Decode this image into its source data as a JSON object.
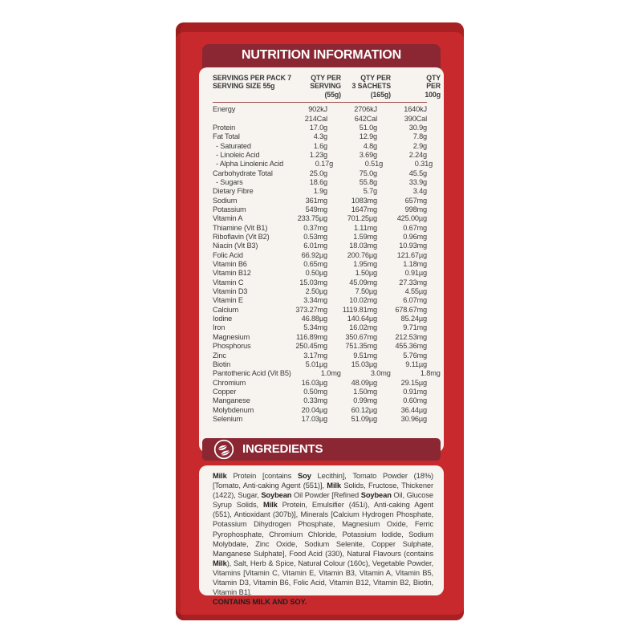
{
  "colors": {
    "box_red": "#c8292c",
    "box_edge_dark": "#9e2023",
    "band_maroon": "#8a2733",
    "panel_bg": "#f7f4f0",
    "text_dark": "#3a3a3a"
  },
  "nutrition": {
    "title": "NUTRITION INFORMATION",
    "servings_per_pack": "SERVINGS PER PACK 7",
    "serving_size": "SERVING SIZE 55g",
    "columns": [
      [
        "QTY PER",
        "SERVING",
        "(55g)"
      ],
      [
        "QTY PER",
        "3 SACHETS",
        "(165g)"
      ],
      [
        "QTY",
        "PER",
        "100g"
      ]
    ],
    "rows": [
      {
        "label": "Energy",
        "v": [
          [
            "902kJ",
            "214Cal"
          ],
          [
            "2706kJ",
            "642Cal"
          ],
          [
            "1640kJ",
            "390Cal"
          ]
        ]
      },
      {
        "label": "Protein",
        "v": [
          "17.0g",
          "51.0g",
          "30.9g"
        ]
      },
      {
        "label": "Fat Total",
        "v": [
          "4.3g",
          "12.9g",
          "7.8g"
        ]
      },
      {
        "label": "- Saturated",
        "sub": true,
        "v": [
          "1.6g",
          "4.8g",
          "2.9g"
        ]
      },
      {
        "label": "- Linoleic Acid",
        "sub": true,
        "v": [
          "1.23g",
          "3.69g",
          "2.24g"
        ]
      },
      {
        "label": "- Alpha Linolenic Acid",
        "sub": true,
        "v": [
          "0.17g",
          "0.51g",
          "0.31g"
        ]
      },
      {
        "label": "Carbohydrate Total",
        "v": [
          "25.0g",
          "75.0g",
          "45.5g"
        ]
      },
      {
        "label": "- Sugars",
        "sub": true,
        "v": [
          "18.6g",
          "55.8g",
          "33.9g"
        ]
      },
      {
        "label": "Dietary Fibre",
        "v": [
          "1.9g",
          "5.7g",
          "3.4g"
        ]
      },
      {
        "label": "Sodium",
        "v": [
          "361mg",
          "1083mg",
          "657mg"
        ]
      },
      {
        "label": "Potassium",
        "v": [
          "549mg",
          "1647mg",
          "998mg"
        ]
      },
      {
        "label": "Vitamin A",
        "v": [
          "233.75µg",
          "701.25µg",
          "425.00µg"
        ]
      },
      {
        "label": "Thiamine (Vit B1)",
        "v": [
          "0.37mg",
          "1.11mg",
          "0.67mg"
        ]
      },
      {
        "label": "Riboflavin (Vit B2)",
        "v": [
          "0.53mg",
          "1.59mg",
          "0.96mg"
        ]
      },
      {
        "label": "Niacin (Vit B3)",
        "v": [
          "6.01mg",
          "18.03mg",
          "10.93mg"
        ]
      },
      {
        "label": "Folic Acid",
        "v": [
          "66.92µg",
          "200.76µg",
          "121.67µg"
        ]
      },
      {
        "label": "Vitamin B6",
        "v": [
          "0.65mg",
          "1.95mg",
          "1.18mg"
        ]
      },
      {
        "label": "Vitamin B12",
        "v": [
          "0.50µg",
          "1.50µg",
          "0.91µg"
        ]
      },
      {
        "label": "Vitamin C",
        "v": [
          "15.03mg",
          "45.09mg",
          "27.33mg"
        ]
      },
      {
        "label": "Vitamin D3",
        "v": [
          "2.50µg",
          "7.50µg",
          "4.55µg"
        ]
      },
      {
        "label": "Vitamin E",
        "v": [
          "3.34mg",
          "10.02mg",
          "6.07mg"
        ]
      },
      {
        "label": "Calcium",
        "v": [
          "373.27mg",
          "1119.81mg",
          "678.67mg"
        ]
      },
      {
        "label": "Iodine",
        "v": [
          "46.88µg",
          "140.64µg",
          "85.24µg"
        ]
      },
      {
        "label": "Iron",
        "v": [
          "5.34mg",
          "16.02mg",
          "9.71mg"
        ]
      },
      {
        "label": "Magnesium",
        "v": [
          "116.89mg",
          "350.67mg",
          "212.53mg"
        ]
      },
      {
        "label": "Phosphorus",
        "v": [
          "250.45mg",
          "751.35mg",
          "455.36mg"
        ]
      },
      {
        "label": "Zinc",
        "v": [
          "3.17mg",
          "9.51mg",
          "5.76mg"
        ]
      },
      {
        "label": "Biotin",
        "v": [
          "5.01µg",
          "15.03µg",
          "9.11µg"
        ]
      },
      {
        "label": "Pantothenic Acid (Vit B5)",
        "v": [
          "1.0mg",
          "3.0mg",
          "1.8mg"
        ]
      },
      {
        "label": "Chromium",
        "v": [
          "16.03µg",
          "48.09µg",
          "29.15µg"
        ]
      },
      {
        "label": "Copper",
        "v": [
          "0.50mg",
          "1.50mg",
          "0.91mg"
        ]
      },
      {
        "label": "Manganese",
        "v": [
          "0.33mg",
          "0.99mg",
          "0.60mg"
        ]
      },
      {
        "label": "Molybdenum",
        "v": [
          "20.04µg",
          "60.12µg",
          "36.44µg"
        ]
      },
      {
        "label": "Selenium",
        "v": [
          "17.03µg",
          "51.09µg",
          "30.96µg"
        ]
      }
    ]
  },
  "ingredients": {
    "title": "INGREDIENTS",
    "icon": "leaf-icon",
    "segments": [
      {
        "t": "Milk",
        "b": true
      },
      {
        "t": " Protein [contains ",
        "b": false
      },
      {
        "t": "Soy",
        "b": true
      },
      {
        "t": " Lecithin], Tomato Powder (18%) [Tomato, Anti-caking Agent (551)], ",
        "b": false
      },
      {
        "t": "Milk",
        "b": true
      },
      {
        "t": " Solids, Fructose, Thickener (1422), Sugar, ",
        "b": false
      },
      {
        "t": "Soybean",
        "b": true
      },
      {
        "t": " Oil Powder [Refined ",
        "b": false
      },
      {
        "t": "Soybean",
        "b": true
      },
      {
        "t": " Oil, Glucose Syrup Solids, ",
        "b": false
      },
      {
        "t": "Milk",
        "b": true
      },
      {
        "t": " Protein, Emulsifier (451i), Anti-caking Agent (551), Antioxidant (307b)], Minerals [Calcium Hydrogen Phosphate, Potassium Dihydrogen Phosphate, Magnesium Oxide, Ferric Pyrophosphate, Chromium Chloride, Potassium Iodide, Sodium Molybdate, Zinc Oxide, Sodium Selenite, Copper Sulphate, Manganese Sulphate], Food Acid (330), Natural Flavours (contains ",
        "b": false
      },
      {
        "t": "Milk",
        "b": true
      },
      {
        "t": "), Salt, Herb & Spice, Natural Colour (160c), Vegetable Powder, Vitamins [Vitamin C, Vitamin E, Vitamin B3, Vitamin A, Vitamin B5, Vitamin D3, Vitamin B6, Folic Acid, Vitamin B12, Vitamin B2, Biotin, Vitamin B1].",
        "b": false
      }
    ],
    "contains": "CONTAINS MILK AND SOY."
  }
}
